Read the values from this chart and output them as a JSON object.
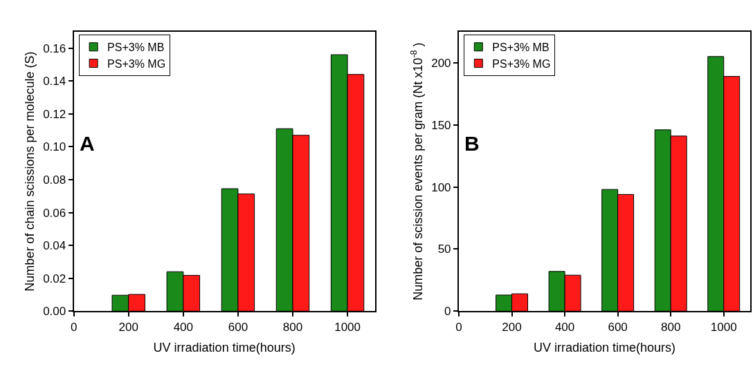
{
  "chart_data": [
    {
      "type": "bar",
      "xlabel": "UV irradiation time(hours)",
      "ylabel": "Number of chain scissions per molecule (S)",
      "x": [
        200,
        400,
        600,
        800,
        1000
      ],
      "xlim": [
        0,
        1100
      ],
      "xticks": [
        0,
        200,
        400,
        600,
        800,
        1000
      ],
      "ylim": [
        0,
        0.17
      ],
      "yticks": [
        {
          "value": 0,
          "label": "0.00"
        },
        {
          "value": 0.02,
          "label": "0.02"
        },
        {
          "value": 0.04,
          "label": "0.04"
        },
        {
          "value": 0.06,
          "label": "0.06"
        },
        {
          "value": 0.08,
          "label": "0.08"
        },
        {
          "value": 0.1,
          "label": "0.10"
        },
        {
          "value": 0.12,
          "label": "0.12"
        },
        {
          "value": 0.14,
          "label": "0.14"
        },
        {
          "value": 0.16,
          "label": "0.16"
        }
      ],
      "legend": "top left",
      "annotations": [
        "A"
      ],
      "series": [
        {
          "name": "PS+3% MB",
          "color": "#1a8a1a",
          "values": [
            0.0097,
            0.024,
            0.0745,
            0.111,
            0.156
          ]
        },
        {
          "name": "PS+3% MG",
          "color": "#ff1a1a",
          "values": [
            0.0102,
            0.0218,
            0.0713,
            0.107,
            0.144
          ]
        }
      ]
    },
    {
      "type": "bar",
      "xlabel": "UV irradiation time(hours)",
      "ylabel": "Number of scission events per gram (Nt x10$^{-8}$ )",
      "x": [
        200,
        400,
        600,
        800,
        1000
      ],
      "xlim": [
        0,
        1100
      ],
      "xticks": [
        0,
        200,
        400,
        600,
        800,
        1000
      ],
      "ylim": [
        0,
        225
      ],
      "yticks": [
        0,
        50,
        100,
        150,
        200
      ],
      "legend": "top left",
      "annotations": [
        "B"
      ],
      "series": [
        {
          "name": "PS+3% MB",
          "color": "#1a8a1a",
          "values": [
            13,
            32,
            98,
            146,
            205
          ]
        },
        {
          "name": "PS+3% MG",
          "color": "#ff1a1a",
          "values": [
            14,
            29,
            94,
            141,
            189
          ]
        }
      ]
    }
  ]
}
